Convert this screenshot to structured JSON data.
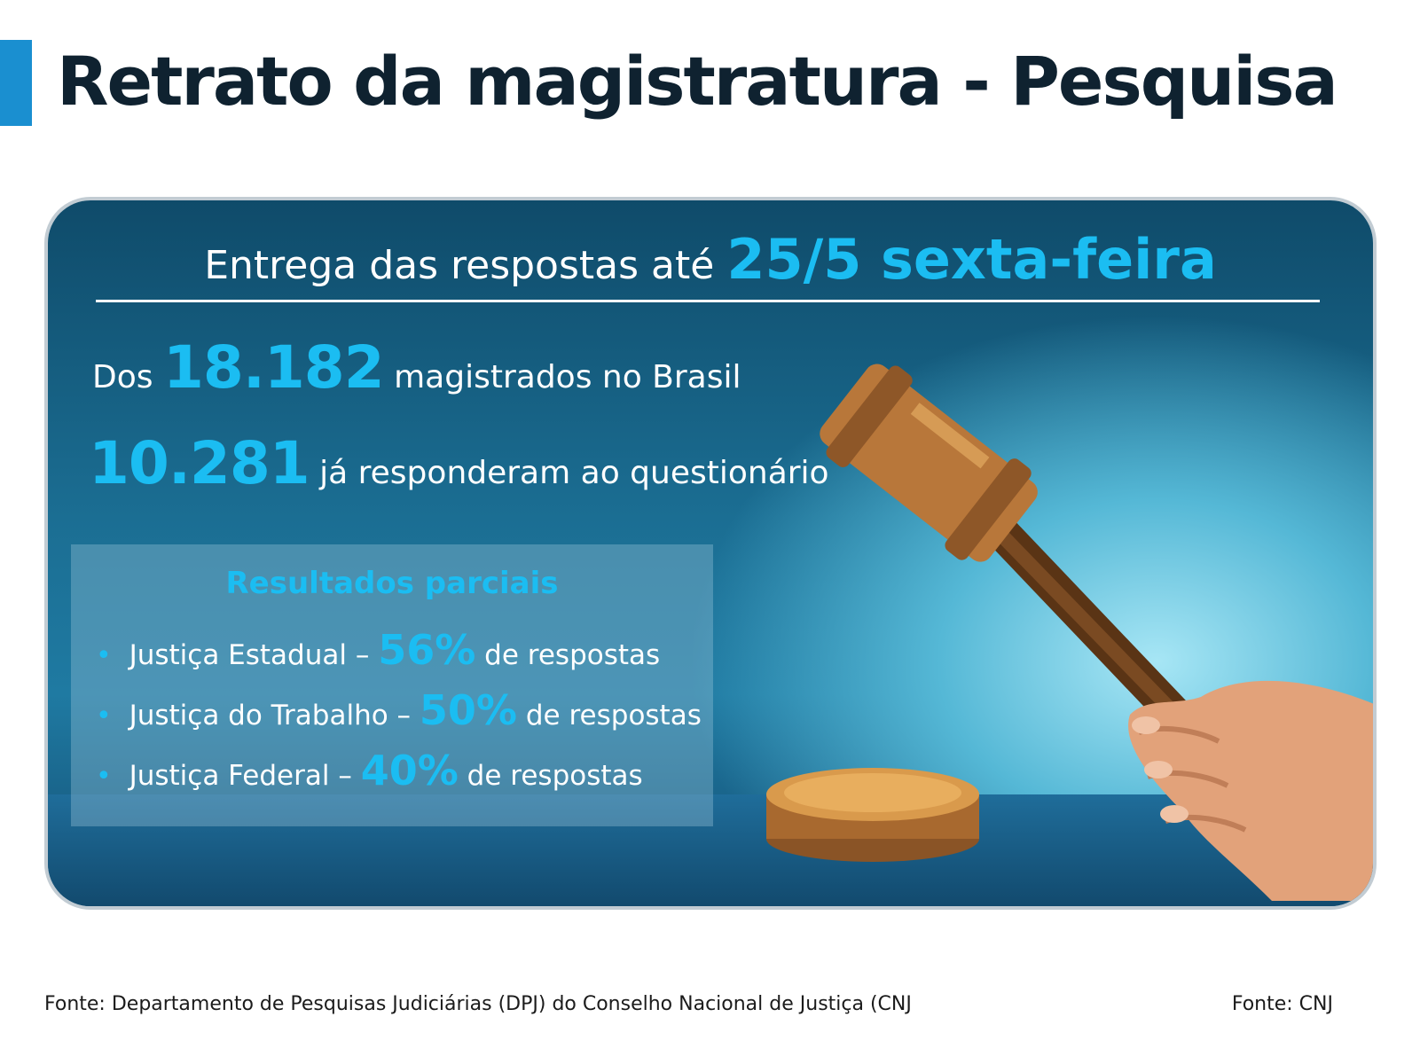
{
  "header": {
    "title": "Retrato da magistratura - Pesquisa"
  },
  "card": {
    "deadline_text": "Entrega das respostas até",
    "deadline_highlight": "25/5 sexta-feira",
    "line1_prefix": "Dos",
    "line1_number": "18.182",
    "line1_suffix": "magistrados no Brasil",
    "line2_number": "10.281",
    "line2_suffix": "já responderam ao questionário",
    "results": {
      "title": "Resultados parciais",
      "items": [
        {
          "label": "Justiça Estadual –",
          "pct": "56%",
          "suffix": "de respostas"
        },
        {
          "label": "Justiça do Trabalho –",
          "pct": "50%",
          "suffix": "de respostas"
        },
        {
          "label": "Justiça Federal –",
          "pct": "40%",
          "suffix": "de respostas"
        }
      ]
    }
  },
  "footer": {
    "source_left": "Fonte: Departamento de Pesquisas Judiciárias (DPJ) do Conselho Nacional de Justiça (CNJ",
    "source_right": "Fonte: CNJ"
  },
  "colors": {
    "accent": "#1bbdf2",
    "title": "#0f2230",
    "bar": "#1a8fd0",
    "card": "#1b6e93"
  },
  "icons": {
    "illustration": "gavel-hand-icon",
    "bullet": "bullet-dot-icon"
  }
}
